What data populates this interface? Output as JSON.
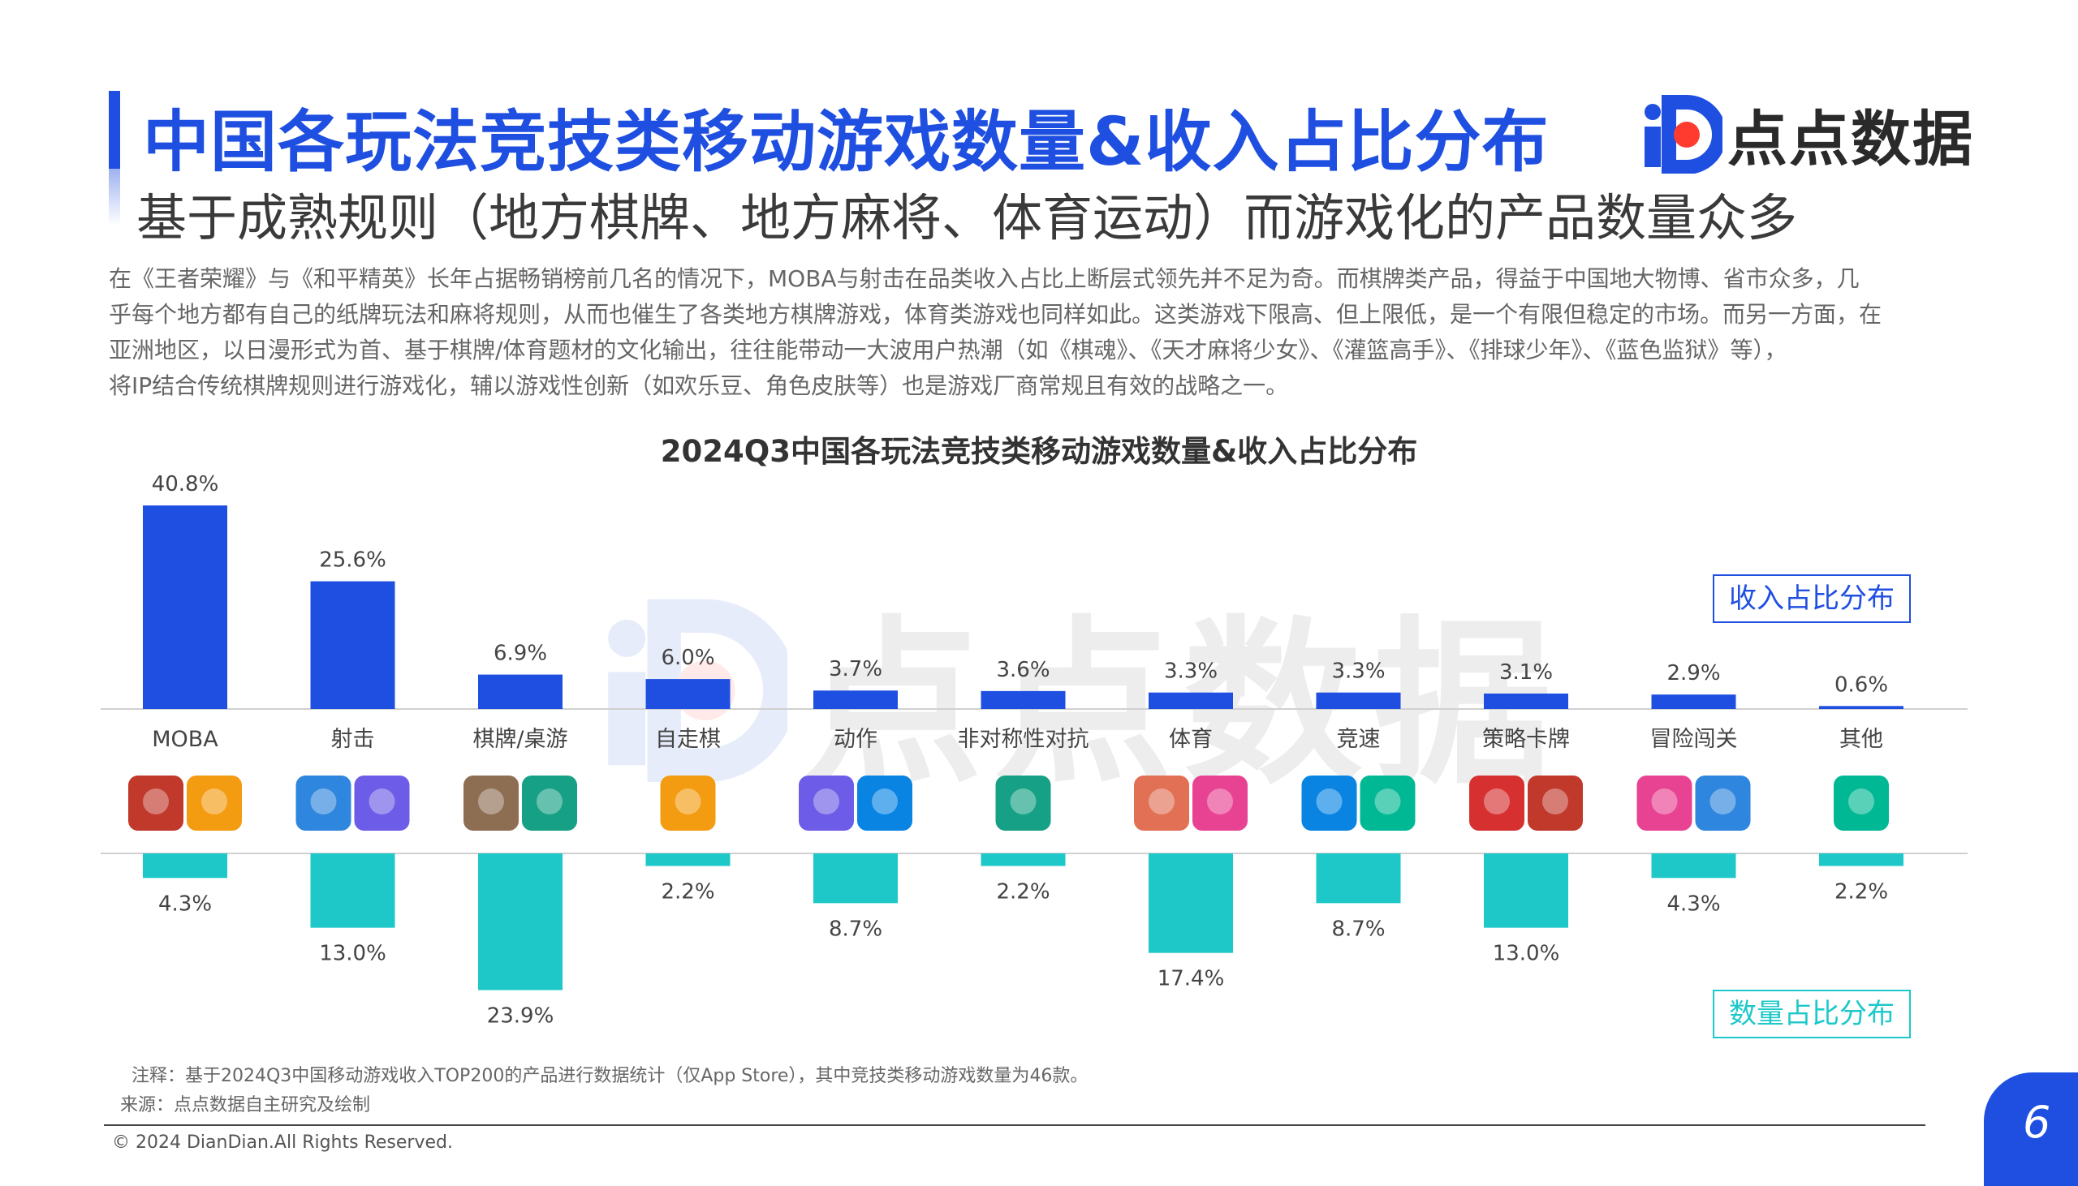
{
  "header": {
    "title": "中国各玩法竞技类移动游戏数量&收入占比分布",
    "subtitle": "基于成熟规则（地方棋牌、地方麻将、体育运动）而游戏化的产品数量众多",
    "logo_text": "点点数据"
  },
  "description": [
    "在《王者荣耀》与《和平精英》长年占据畅销榜前几名的情况下，MOBA与射击在品类收入占比上断层式领先并不足为奇。而棋牌类产品，得益于中国地大物博、省市众多，几",
    "乎每个地方都有自己的纸牌玩法和麻将规则，从而也催生了各类地方棋牌游戏，体育类游戏也同样如此。这类游戏下限高、但上限低，是一个有限但稳定的市场。而另一方面，在",
    "亚洲地区，以日漫形式为首、基于棋牌/体育题材的文化输出，往往能带动一大波用户热潮（如《棋魂》、《天才麻将少女》、《灌篮高手》、《排球少年》、《蓝色监狱》等），",
    "将IP结合传统棋牌规则进行游戏化，辅以游戏性创新（如欢乐豆、角色皮肤等）也是游戏厂商常规且有效的战略之一。"
  ],
  "chart_data": {
    "type": "bar",
    "title": "2024Q3中国各玩法竞技类移动游戏数量&收入占比分布",
    "categories": [
      "MOBA",
      "射击",
      "棋牌/桌游",
      "自走棋",
      "动作",
      "非对称性对抗",
      "体育",
      "竞速",
      "策略卡牌",
      "冒险闯关",
      "其他"
    ],
    "series": [
      {
        "name": "收入占比分布",
        "values": [
          40.8,
          25.6,
          6.9,
          6.0,
          3.7,
          3.6,
          3.3,
          3.3,
          3.1,
          2.9,
          0.6
        ],
        "labels": [
          "40.8%",
          "25.6%",
          "6.9%",
          "6.0%",
          "3.7%",
          "3.6%",
          "3.3%",
          "3.3%",
          "3.1%",
          "2.9%",
          "0.6%"
        ]
      },
      {
        "name": "数量占比分布",
        "values": [
          4.3,
          13.0,
          23.9,
          2.2,
          8.7,
          2.2,
          17.4,
          8.7,
          13.0,
          4.3,
          2.2
        ],
        "labels": [
          "4.3%",
          "13.0%",
          "23.9%",
          "2.2%",
          "8.7%",
          "2.2%",
          "17.4%",
          "8.7%",
          "13.0%",
          "4.3%",
          "2.2%"
        ]
      }
    ],
    "ylabel": "",
    "xlabel": "",
    "legend": "right"
  },
  "game_icon_counts": [
    2,
    2,
    2,
    1,
    2,
    1,
    2,
    2,
    2,
    2,
    1
  ],
  "colors": {
    "accent": "#1f4fe0",
    "revenue_bar": "#1f4fe0",
    "count_bar": "#1ec8c8",
    "icon_palette": [
      "#c0392b",
      "#2e86de",
      "#8e6e53",
      "#f39c12",
      "#6c5ce7",
      "#16a085",
      "#e17055",
      "#0984e3",
      "#d63031",
      "#e84393",
      "#00b894"
    ]
  },
  "footer": {
    "note": "注释：基于2024Q3中国移动游戏收入TOP200的产品进行数据统计（仅App Store），其中竞技类移动游戏数量为46款。",
    "source": "来源：点点数据自主研究及绘制",
    "copyright": "© 2024 DianDian.All Rights Reserved.",
    "page_number": "6"
  }
}
